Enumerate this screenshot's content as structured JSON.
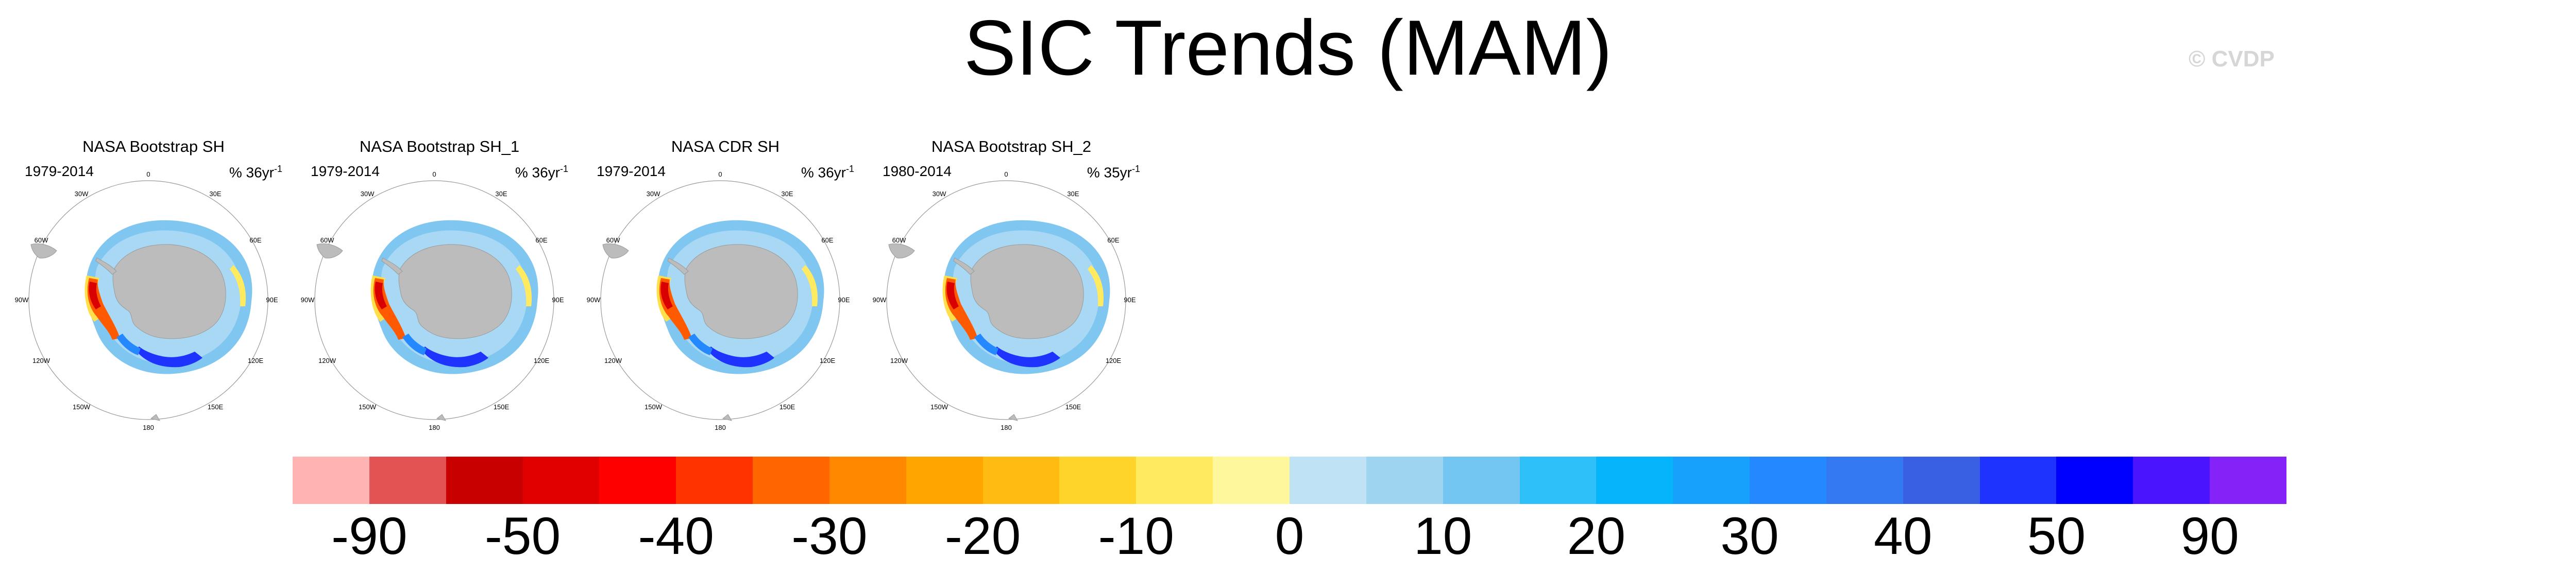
{
  "title": "SIC Trends (MAM)",
  "watermark": "© CVDP",
  "panels": [
    {
      "title": "NASA Bootstrap SH",
      "years": "1979-2014",
      "units_prefix": "% 36yr",
      "units_exp": "-1"
    },
    {
      "title": "NASA Bootstrap SH_1",
      "years": "1979-2014",
      "units_prefix": "% 36yr",
      "units_exp": "-1"
    },
    {
      "title": "NASA CDR SH",
      "years": "1979-2014",
      "units_prefix": "% 36yr",
      "units_exp": "-1"
    },
    {
      "title": "NASA Bootstrap SH_2",
      "years": "1980-2014",
      "units_prefix": "% 35yr",
      "units_exp": "-1"
    }
  ],
  "map_labels": {
    "lon_0": "0",
    "lon_30e": "30E",
    "lon_60e": "60E",
    "lon_90e": "90E",
    "lon_120e": "120E",
    "lon_150e": "150E",
    "lon_180": "180",
    "lon_150w": "150W",
    "lon_120w": "120W",
    "lon_90w": "90W",
    "lon_60w": "60W",
    "lon_30w": "30W"
  },
  "colorbar": {
    "colors": [
      "#ffb3b3",
      "#e35353",
      "#c80000",
      "#e10000",
      "#ff0000",
      "#ff3300",
      "#ff6600",
      "#ff8800",
      "#ffa500",
      "#ffbb11",
      "#ffd42a",
      "#ffea60",
      "#fff79b",
      "#bfe3f5",
      "#9fd4f0",
      "#73c6f2",
      "#2ec0f9",
      "#05b4fb",
      "#17a1fd",
      "#2488ff",
      "#3579f2",
      "#3960e3",
      "#1f33ff",
      "#0000ff",
      "#4b14ff",
      "#8522f7"
    ],
    "labels": [
      "-90",
      "-50",
      "-40",
      "-30",
      "-20",
      "-10",
      "0",
      "10",
      "20",
      "30",
      "40",
      "50",
      "90"
    ],
    "label_positions": [
      1,
      3,
      5,
      7,
      9,
      11,
      13,
      15,
      17,
      19,
      21,
      23,
      25
    ]
  },
  "chart_data": {
    "type": "heatmap",
    "title": "SIC Trends (MAM)",
    "panels": [
      "NASA Bootstrap SH",
      "NASA Bootstrap SH_1",
      "NASA CDR SH",
      "NASA Bootstrap SH_2"
    ],
    "periods": [
      "1979-2014",
      "1979-2014",
      "1979-2014",
      "1980-2014"
    ],
    "units": [
      "% 36yr-1",
      "% 36yr-1",
      "% 36yr-1",
      "% 35yr-1"
    ],
    "colorbar_levels": [
      -90,
      -50,
      -40,
      -30,
      -20,
      -10,
      0,
      10,
      20,
      30,
      40,
      50,
      90
    ]
  }
}
